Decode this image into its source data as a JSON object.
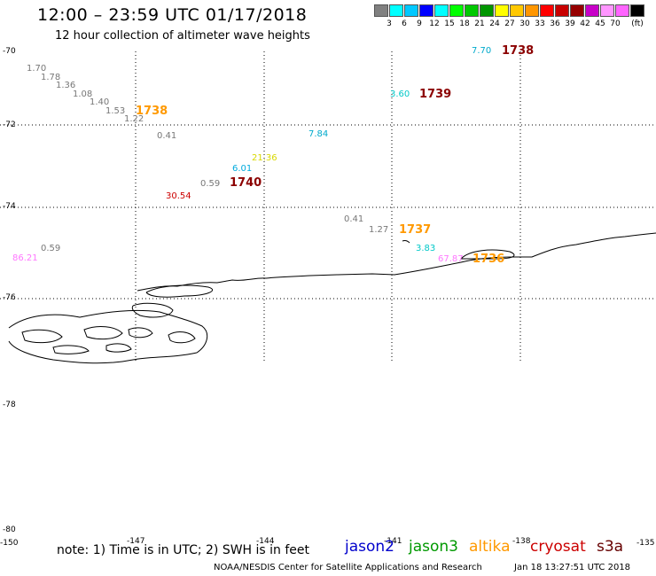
{
  "header": {
    "title": "12:00 – 23:59 UTC 01/17/2018",
    "subtitle": "12 hour collection of altimeter wave heights"
  },
  "legend": {
    "colors": [
      "#808080",
      "#00ffff",
      "#00c8ff",
      "#0000ff",
      "#00ffff",
      "#00ff00",
      "#00c800",
      "#009600",
      "#ffff00",
      "#ffc800",
      "#ff9600",
      "#ff0000",
      "#c80000",
      "#960000",
      "#c800c8",
      "#ff96ff",
      "#ff64ff",
      "#000000"
    ],
    "labels": [
      "3",
      "6",
      "9",
      "12",
      "15",
      "18",
      "21",
      "24",
      "27",
      "30",
      "33",
      "36",
      "39",
      "42",
      "45",
      "70",
      "(ft)"
    ]
  },
  "axes": {
    "lat_labels": [
      "-70",
      "-72",
      "-74",
      "-76",
      "-78",
      "-80"
    ],
    "lon_labels": [
      "-150",
      "-147",
      "-144",
      "-141",
      "-138",
      "-135"
    ]
  },
  "observations": {
    "gray_values": [
      "1.70",
      "1.78",
      "1.36",
      "1.08",
      "1.40",
      "1.53",
      "1.22",
      "0.41",
      "0.59",
      "0.41",
      "1.27",
      "0.59"
    ],
    "colored_values": [
      {
        "text": "7.70",
        "color": "#00aacc"
      },
      {
        "text": "3.60",
        "color": "#00c8c8"
      },
      {
        "text": "7.84",
        "color": "#00aacc"
      },
      {
        "text": "21.36",
        "color": "#d8d800"
      },
      {
        "text": "6.01",
        "color": "#00aadd"
      },
      {
        "text": "30.54",
        "color": "#cc0000"
      },
      {
        "text": "3.83",
        "color": "#00c8c8"
      },
      {
        "text": "86.21",
        "color": "#ff77ff"
      },
      {
        "text": "67.87",
        "color": "#ff77ff"
      }
    ],
    "times": [
      {
        "text": "1738",
        "color": "#8b0000"
      },
      {
        "text": "1739",
        "color": "#8b0000"
      },
      {
        "text": "1738",
        "color": "#ff9900"
      },
      {
        "text": "1740",
        "color": "#8b0000"
      },
      {
        "text": "1737",
        "color": "#ff9900"
      },
      {
        "text": "1736",
        "color": "#ff9900"
      }
    ]
  },
  "footer": {
    "note": "note: 1) Time is in UTC; 2) SWH is in feet",
    "satellites": [
      {
        "name": "jason2",
        "color": "#0000cc"
      },
      {
        "name": "jason3",
        "color": "#009900"
      },
      {
        "name": "altika",
        "color": "#ff9900"
      },
      {
        "name": "cryosat",
        "color": "#cc0000"
      },
      {
        "name": "s3a",
        "color": "#660000"
      }
    ],
    "credit": "NOAA/NESDIS Center for Satellite Applications and Research",
    "timestamp": "Jan 18 13:27:51 UTC 2018"
  }
}
